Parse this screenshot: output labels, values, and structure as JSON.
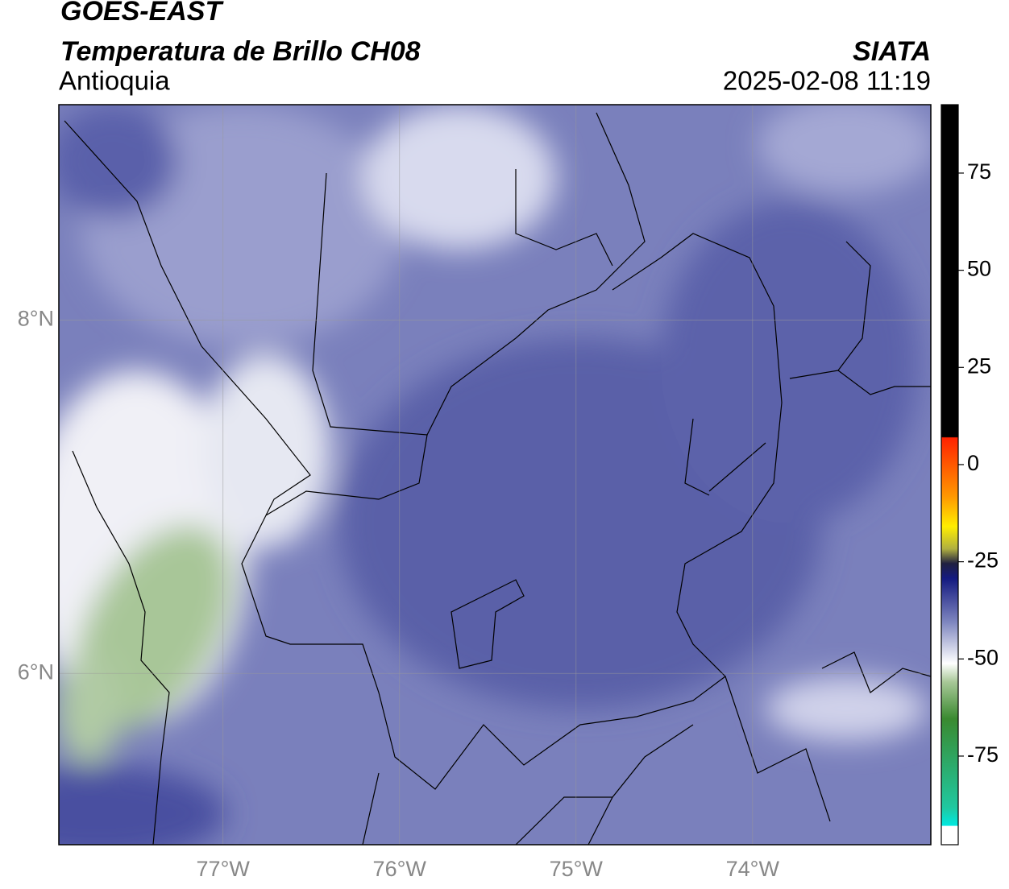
{
  "header": {
    "title": "GOES-EAST",
    "subtitle": "Temperatura de Brillo CH08",
    "region": "Antioquia",
    "source": "SIATA",
    "datetime": "2025-02-08 11:19"
  },
  "map": {
    "xlim": [
      -77.93,
      -72.99
    ],
    "ylim": [
      5.03,
      9.22
    ],
    "xticks": [
      {
        "value": -77,
        "label": "77°W"
      },
      {
        "value": -76,
        "label": "76°W"
      },
      {
        "value": -75,
        "label": "75°W"
      },
      {
        "value": -74,
        "label": "74°W"
      }
    ],
    "yticks": [
      {
        "value": 6,
        "label": "6°N"
      },
      {
        "value": 8,
        "label": "8°N"
      }
    ],
    "grid": true
  },
  "colorbar": {
    "ylim": [
      -97.8,
      92.6
    ],
    "yticks": [
      -75,
      -50,
      -25,
      0,
      25,
      50,
      75
    ]
  }
}
